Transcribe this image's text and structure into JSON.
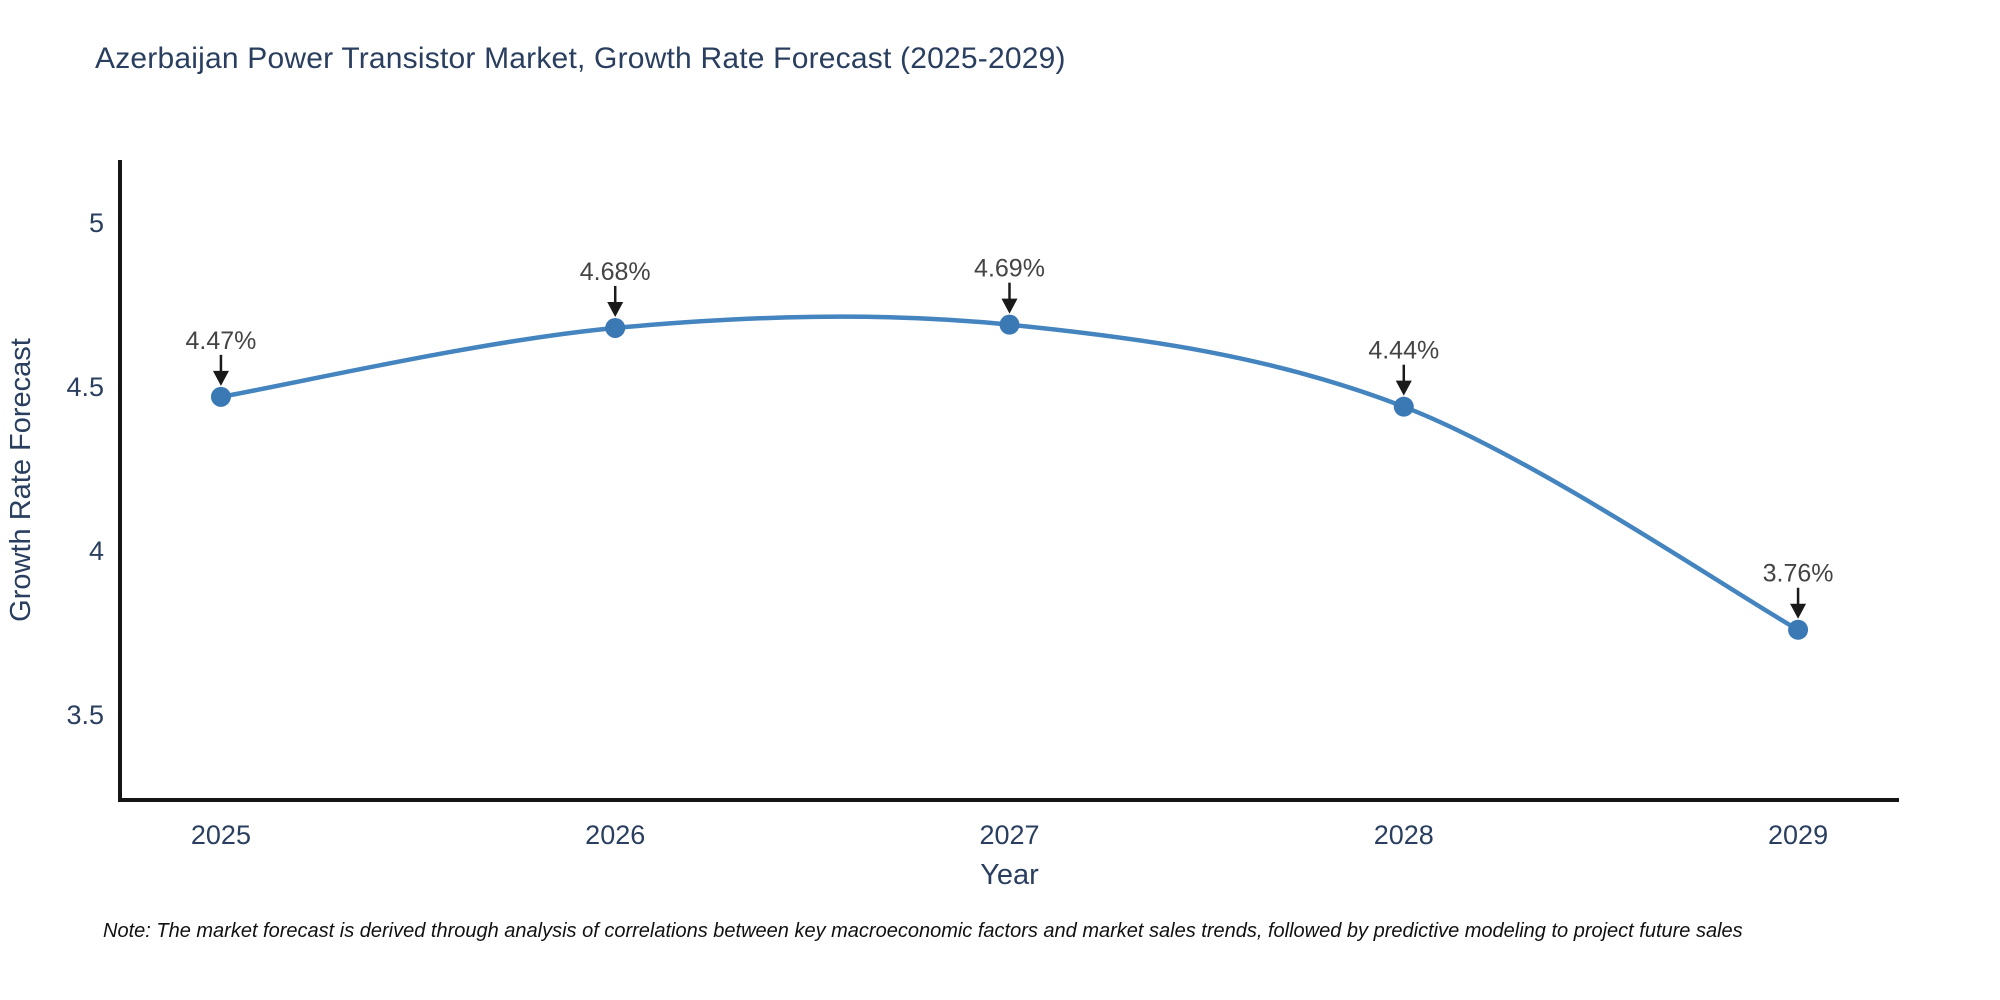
{
  "title": "Azerbaijan Power Transistor Market, Growth Rate Forecast (2025-2029)",
  "note": "Note: The market forecast is derived through analysis of correlations between key macroeconomic factors and market sales trends, followed by predictive modeling to project future sales",
  "chart_data": {
    "type": "line",
    "title": "Azerbaijan Power Transistor Market, Growth Rate Forecast (2025-2029)",
    "x": [
      2025,
      2026,
      2027,
      2028,
      2029
    ],
    "series": [
      {
        "name": "Growth Rate Forecast",
        "values": [
          4.47,
          4.68,
          4.69,
          4.44,
          3.76
        ]
      }
    ],
    "point_labels": [
      "4.47%",
      "4.68%",
      "4.69%",
      "4.44%",
      "3.76%"
    ],
    "xlabel": "Year",
    "ylabel": "Growth Rate Forecast",
    "xlim": [
      2024.744,
      2029.256
    ],
    "ylim": [
      3.241,
      5.192
    ],
    "xticks": [
      2025,
      2026,
      2027,
      2028,
      2029
    ],
    "xtick_labels": [
      "2025",
      "2026",
      "2027",
      "2028",
      "2029"
    ],
    "yticks": [
      3.5,
      4,
      4.5,
      5
    ],
    "ytick_labels": [
      "3.5",
      "4",
      "4.5",
      "5"
    ],
    "grid": false,
    "legend": "none",
    "line_shape": "spline",
    "marker_radius": 10,
    "line_width": 4.5,
    "colors": {
      "line": "#4484bf",
      "marker": "#3b79b5",
      "axis": "#151515",
      "tick_text": "#2a3f5f",
      "axis_title_text": "#2a3f5f",
      "title_text": "#2a3f5f",
      "annotation_text": "#444444",
      "arrow": "#1a1a1a",
      "background": "#ffffff"
    }
  }
}
